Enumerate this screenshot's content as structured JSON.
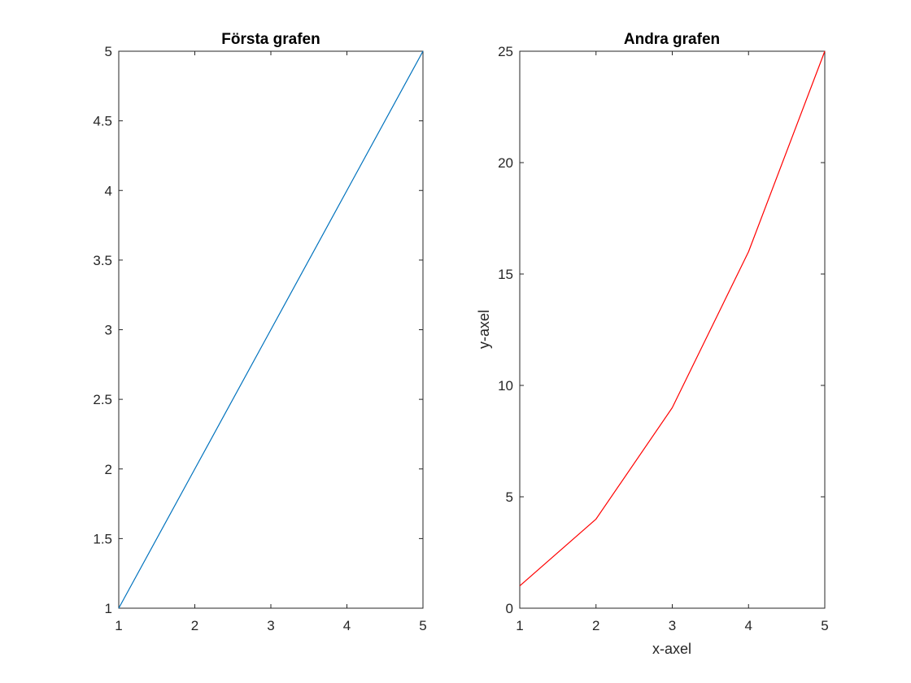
{
  "chart_data": [
    {
      "type": "line",
      "title": "Första grafen",
      "xlabel": "",
      "ylabel": "",
      "xlim": [
        1,
        5
      ],
      "ylim": [
        1,
        5
      ],
      "xticks": [
        1,
        2,
        3,
        4,
        5
      ],
      "xtick_labels": [
        "1",
        "2",
        "3",
        "4",
        "5"
      ],
      "yticks": [
        1,
        1.5,
        2,
        2.5,
        3,
        3.5,
        4,
        4.5,
        5
      ],
      "ytick_labels": [
        "1",
        "1.5",
        "2",
        "2.5",
        "3",
        "3.5",
        "4",
        "4.5",
        "5"
      ],
      "grid": false,
      "legend": false,
      "series": [
        {
          "x": [
            1,
            2,
            3,
            4,
            5
          ],
          "y": [
            1,
            2,
            3,
            4,
            5
          ],
          "color": "#0072BD"
        }
      ]
    },
    {
      "type": "line",
      "title": "Andra grafen",
      "xlabel": "x-axel",
      "ylabel": "y-axel",
      "xlim": [
        1,
        5
      ],
      "ylim": [
        0,
        25
      ],
      "xticks": [
        1,
        2,
        3,
        4,
        5
      ],
      "xtick_labels": [
        "1",
        "2",
        "3",
        "4",
        "5"
      ],
      "yticks": [
        0,
        5,
        10,
        15,
        20,
        25
      ],
      "ytick_labels": [
        "0",
        "5",
        "10",
        "15",
        "20",
        "25"
      ],
      "grid": false,
      "legend": false,
      "series": [
        {
          "x": [
            1,
            2,
            3,
            4,
            5
          ],
          "y": [
            1,
            4,
            9,
            16,
            25
          ],
          "color": "#FF0000"
        }
      ]
    }
  ]
}
